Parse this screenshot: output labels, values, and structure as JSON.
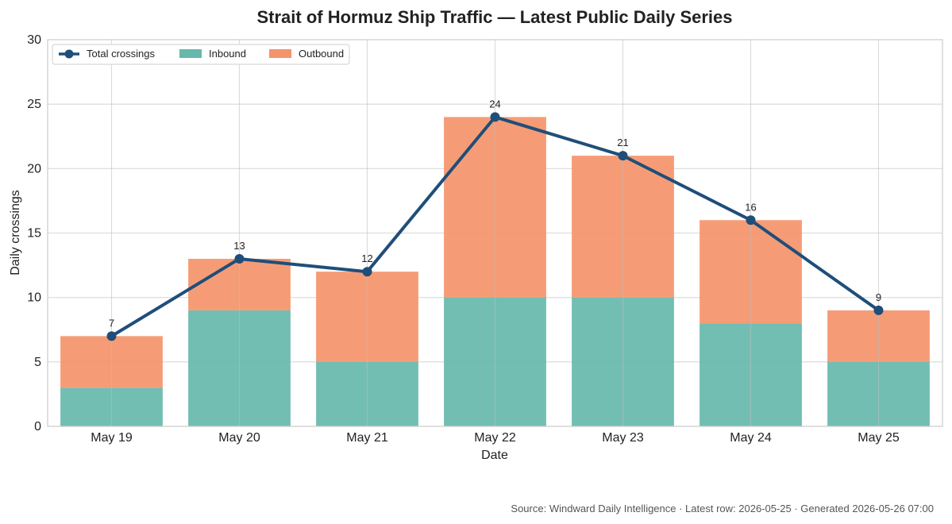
{
  "chart_data": {
    "type": "bar",
    "title": "Strait of Hormuz Ship Traffic — Latest Public Daily Series",
    "xlabel": "Date",
    "ylabel": "Daily crossings",
    "ylim": [
      0,
      30
    ],
    "yticks": [
      0,
      5,
      10,
      15,
      20,
      25,
      30
    ],
    "grid": true,
    "stacked": true,
    "legend_position": "top-left",
    "categories": [
      "May 19",
      "May 20",
      "May 21",
      "May 22",
      "May 23",
      "May 24",
      "May 25"
    ],
    "series": [
      {
        "name": "Inbound",
        "type": "bar",
        "color": "#66b8ac",
        "values": [
          3,
          9,
          5,
          10,
          10,
          8,
          5
        ]
      },
      {
        "name": "Outbound",
        "type": "bar",
        "color": "#f4946b",
        "values": [
          4,
          4,
          7,
          14,
          11,
          8,
          4
        ]
      },
      {
        "name": "Total crossings",
        "type": "line",
        "color": "#1f4e79",
        "values": [
          7,
          13,
          12,
          24,
          21,
          16,
          9
        ]
      }
    ],
    "source_note": "Source: Windward Daily Intelligence · Latest row: 2026-05-25 · Generated 2026-05-26 07:00"
  }
}
